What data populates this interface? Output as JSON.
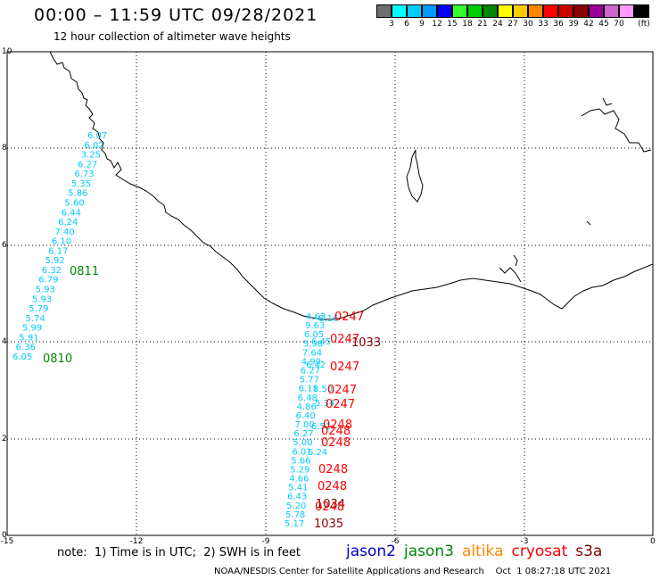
{
  "title": "00:00 – 11:59 UTC 09/28/2021",
  "subtitle": "12 hour collection of altimeter wave heights",
  "color_scale": {
    "unit_label": "(ft)",
    "bins": [
      {
        "label": "",
        "color": "#6e6e6e"
      },
      {
        "label": "3",
        "color": "#00ffff"
      },
      {
        "label": "6",
        "color": "#00ccff"
      },
      {
        "label": "9",
        "color": "#0099ff"
      },
      {
        "label": "12",
        "color": "#0000ff"
      },
      {
        "label": "15",
        "color": "#33ff33"
      },
      {
        "label": "18",
        "color": "#00cc00"
      },
      {
        "label": "21",
        "color": "#008800"
      },
      {
        "label": "24",
        "color": "#ffff00"
      },
      {
        "label": "27",
        "color": "#ffcc00"
      },
      {
        "label": "30",
        "color": "#ff8800"
      },
      {
        "label": "33",
        "color": "#ff0000"
      },
      {
        "label": "36",
        "color": "#cc0000"
      },
      {
        "label": "39",
        "color": "#880000"
      },
      {
        "label": "42",
        "color": "#990099"
      },
      {
        "label": "45",
        "color": "#cc66cc"
      },
      {
        "label": "70",
        "color": "#ff99ff"
      },
      {
        "label": "",
        "color": "#000000"
      }
    ]
  },
  "map": {
    "x_ticks": [
      "-15",
      "-12",
      "-9",
      "-6",
      "-3",
      "0"
    ],
    "y_ticks": [
      "0",
      "2",
      "4",
      "6",
      "8",
      "10"
    ],
    "track_west": {
      "values": [
        "6.07",
        "6.02",
        "3.25",
        "6.27",
        "6.73",
        "5.35",
        "5.86",
        "5.60",
        "6.44",
        "6.24",
        "7.40",
        "6.10",
        "6.17",
        "5.92",
        "6.32",
        "6.79",
        "5.93",
        "5.93",
        "5.79",
        "5.74",
        "5.99",
        "5.91",
        "6.36",
        "6.05"
      ],
      "time_labels": [
        {
          "text": "0811",
          "color": "#008800"
        },
        {
          "text": "0810",
          "color": "#008800"
        }
      ]
    },
    "track_east": {
      "values": [
        "4.63",
        "9.63",
        "6.05",
        "5.98",
        "7.64",
        "4.99",
        "6.27",
        "5.77",
        "6.11",
        "6.48",
        "4.86",
        "6.40",
        "7.00",
        "6.27",
        "5.00",
        "6.01",
        "5.66",
        "5.29",
        "4.66",
        "5.41",
        "6.43",
        "5.20",
        "5.78",
        "5.17"
      ],
      "extra_values": [
        "8.16",
        "6.45",
        "6.42",
        "8.50",
        "5.34",
        "6.51",
        "6.24"
      ],
      "time_labels": [
        {
          "text": "0247",
          "color": "#ff0000"
        },
        {
          "text": "0247",
          "color": "#ff0000"
        },
        {
          "text": "1033",
          "color": "#880000"
        },
        {
          "text": "0247",
          "color": "#ff0000"
        },
        {
          "text": "0247",
          "color": "#ff0000"
        },
        {
          "text": "0247",
          "color": "#ff0000"
        },
        {
          "text": "0248",
          "color": "#ff0000"
        },
        {
          "text": "0248",
          "color": "#ff0000"
        },
        {
          "text": "0248",
          "color": "#ff0000"
        },
        {
          "text": "0248",
          "color": "#ff0000"
        },
        {
          "text": "0248",
          "color": "#ff0000"
        },
        {
          "text": "1034",
          "color": "#880000"
        },
        {
          "text": "0248",
          "color": "#ff0000"
        },
        {
          "text": "1035",
          "color": "#880000"
        }
      ]
    },
    "track_color": "#00ccff",
    "coast_color": "#000000"
  },
  "note": "note:  1) Time is in UTC;  2) SWH is in feet",
  "legend": [
    {
      "name": "jason2",
      "color": "#0000cc"
    },
    {
      "name": "jason3",
      "color": "#008800"
    },
    {
      "name": "altika",
      "color": "#ff8800"
    },
    {
      "name": "cryosat",
      "color": "#ff0000"
    },
    {
      "name": "s3a",
      "color": "#880000"
    }
  ],
  "credit": "NOAA/NESDIS Center for Satellite Applications and Research    Oct  1 08:27:18 UTC 2021"
}
